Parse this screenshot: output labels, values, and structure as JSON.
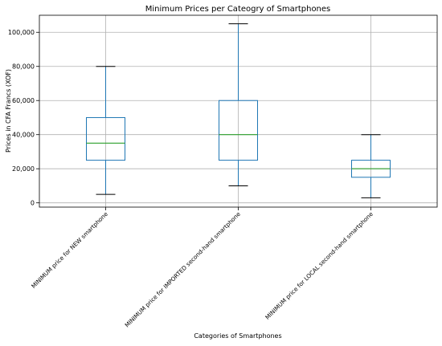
{
  "chart_data": {
    "type": "box",
    "title": "Minimum Prices per Cateogry of Smartphones",
    "xlabel": "Categories of Smartphones",
    "ylabel": "Prices in CFA Francs (XOF)",
    "ylim": [
      -2500,
      110000
    ],
    "yticks": [
      0,
      20000,
      40000,
      60000,
      80000,
      100000
    ],
    "ytick_labels": [
      "0",
      "20,000",
      "40,000",
      "60,000",
      "80,000",
      "100,000"
    ],
    "grid": true,
    "categories": [
      "MINIMUM price for NEW smartphone",
      "MINIMUM price for IMPORTED second-hand smartphone",
      "MINIMUM price for LOCAL second-hand smartphone"
    ],
    "boxes": [
      {
        "whisker_low": 5000,
        "q1": 25000,
        "median": 35000,
        "q3": 50000,
        "whisker_high": 80000
      },
      {
        "whisker_low": 10000,
        "q1": 25000,
        "median": 40000,
        "q3": 60000,
        "whisker_high": 105000
      },
      {
        "whisker_low": 3000,
        "q1": 15000,
        "median": 20000,
        "q3": 25000,
        "whisker_high": 40000
      }
    ],
    "colors": {
      "box": "#1f77b4",
      "median": "#2ca02c",
      "whisker_cap": "#000000",
      "grid": "#b0b0b0"
    }
  }
}
